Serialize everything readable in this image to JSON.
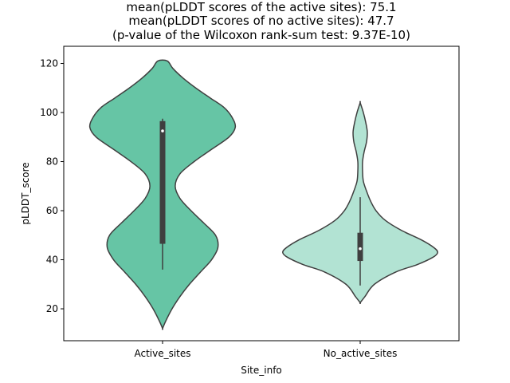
{
  "chart_data": {
    "type": "violin",
    "title": [
      "mean(pLDDT scores of the active sites): 75.1",
      "mean(pLDDT scores of no active sites): 47.7",
      "(p-value of the Wilcoxon rank-sum test: 9.37E-10)"
    ],
    "xlabel": "Site_info",
    "ylabel": "pLDDT_score",
    "ylim": [
      7,
      127
    ],
    "yticks": [
      20,
      40,
      60,
      80,
      100,
      120
    ],
    "categories": [
      "Active_sites",
      "No_active_sites"
    ],
    "series": [
      {
        "category": "Active_sites",
        "color": "#66c5a5",
        "median": 92.5,
        "q1": 46.5,
        "q3": 96.5,
        "whisker_low": 36,
        "whisker_high": 97.5,
        "density": [
          [
            12,
            0.0
          ],
          [
            15,
            0.04
          ],
          [
            20,
            0.12
          ],
          [
            25,
            0.22
          ],
          [
            30,
            0.34
          ],
          [
            35,
            0.48
          ],
          [
            40,
            0.62
          ],
          [
            45,
            0.7
          ],
          [
            50,
            0.67
          ],
          [
            55,
            0.52
          ],
          [
            60,
            0.36
          ],
          [
            65,
            0.22
          ],
          [
            70,
            0.16
          ],
          [
            75,
            0.22
          ],
          [
            80,
            0.4
          ],
          [
            85,
            0.62
          ],
          [
            90,
            0.84
          ],
          [
            94,
            0.92
          ],
          [
            98,
            0.88
          ],
          [
            102,
            0.78
          ],
          [
            106,
            0.6
          ],
          [
            110,
            0.42
          ],
          [
            114,
            0.26
          ],
          [
            118,
            0.13
          ],
          [
            121,
            0.06
          ]
        ]
      },
      {
        "category": "No_active_sites",
        "color": "#b2e3d3",
        "median": 44.5,
        "q1": 39.5,
        "q3": 51,
        "whisker_low": 29.5,
        "whisker_high": 65.5,
        "density": [
          [
            22.5,
            0.0
          ],
          [
            25,
            0.06
          ],
          [
            30,
            0.18
          ],
          [
            35,
            0.45
          ],
          [
            38,
            0.72
          ],
          [
            41,
            0.92
          ],
          [
            43,
            0.98
          ],
          [
            45,
            0.93
          ],
          [
            48,
            0.78
          ],
          [
            52,
            0.52
          ],
          [
            56,
            0.32
          ],
          [
            60,
            0.2
          ],
          [
            64,
            0.13
          ],
          [
            68,
            0.08
          ],
          [
            72,
            0.04
          ],
          [
            76,
            0.03
          ],
          [
            80,
            0.03
          ],
          [
            84,
            0.05
          ],
          [
            88,
            0.08
          ],
          [
            92,
            0.09
          ],
          [
            96,
            0.07
          ],
          [
            100,
            0.04
          ],
          [
            104,
            0.0
          ]
        ]
      }
    ]
  }
}
